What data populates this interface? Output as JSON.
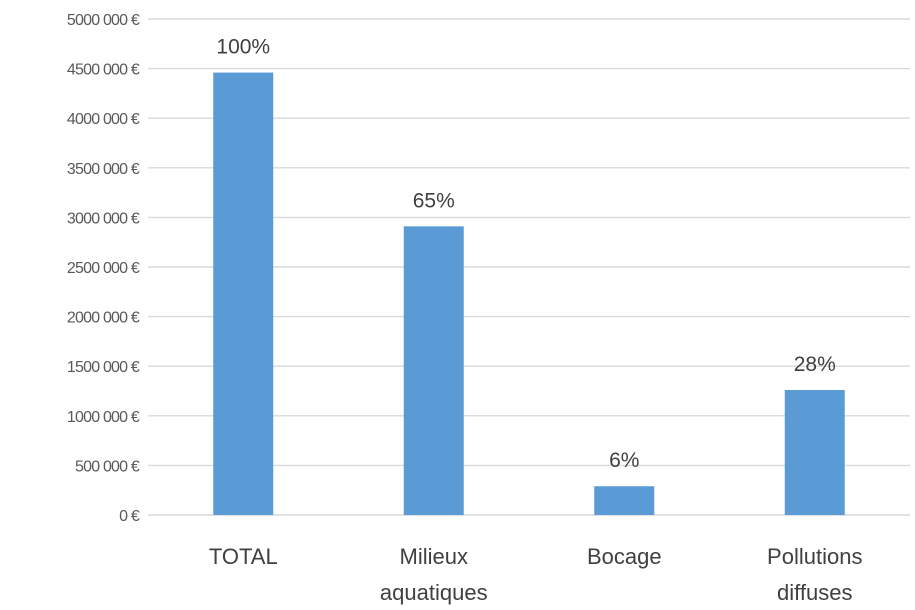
{
  "chart_data": {
    "type": "bar",
    "title": "",
    "xlabel": "",
    "ylabel": "",
    "categories": [
      "TOTAL",
      "Milieux aquatiques",
      "Bocage",
      "Pollutions diffuses"
    ],
    "category_lines": [
      [
        "TOTAL"
      ],
      [
        "Milieux",
        "aquatiques"
      ],
      [
        "Bocage"
      ],
      [
        "Pollutions",
        "diffuses"
      ]
    ],
    "values": [
      4460000,
      2910000,
      290000,
      1260000
    ],
    "data_labels": [
      "100%",
      "65%",
      "6%",
      "28%"
    ],
    "ylim": [
      0,
      5000000
    ],
    "yticks": [
      0,
      500000,
      1000000,
      1500000,
      2000000,
      2500000,
      3000000,
      3500000,
      4000000,
      4500000,
      5000000
    ],
    "ytick_labels": [
      "0 €",
      "500 000 €",
      "1000 000 €",
      "1500 000 €",
      "2000 000 €",
      "2500 000 €",
      "3000 000 €",
      "3500 000 €",
      "4000 000 €",
      "4500 000 €",
      "5000 000 €"
    ],
    "grid": true,
    "legend": "none",
    "colors": {
      "bar": "#5b9bd5",
      "grid": "#d9d9d9",
      "text": "#404040"
    }
  }
}
